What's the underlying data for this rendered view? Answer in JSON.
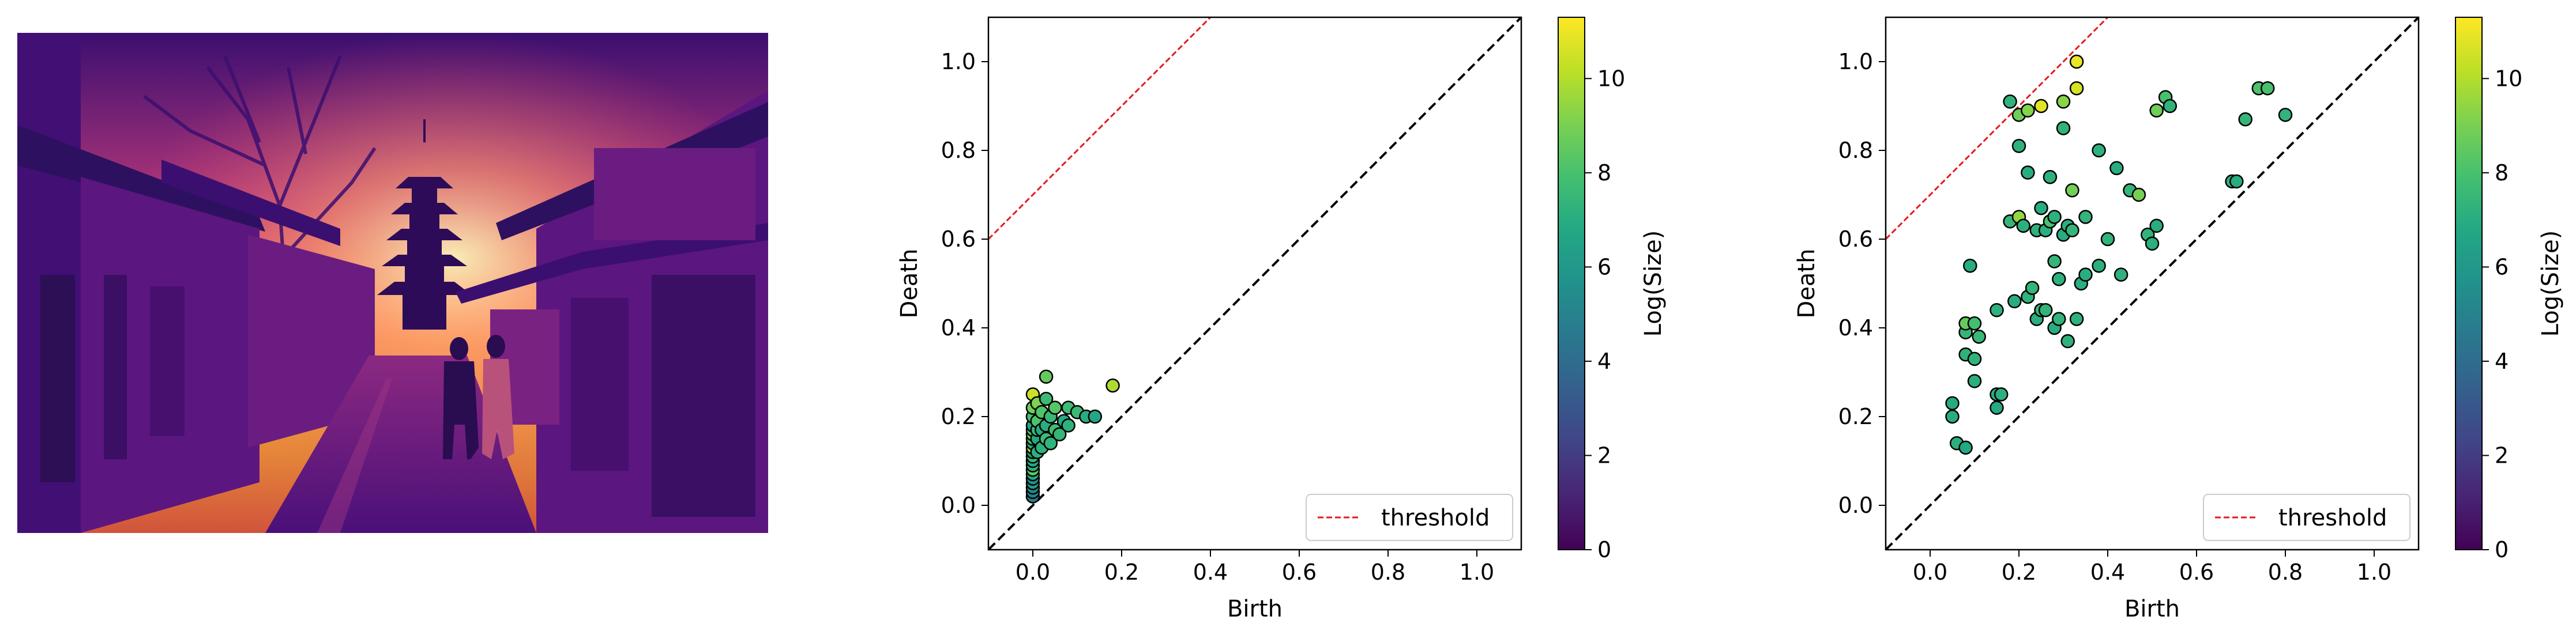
{
  "figure": {
    "panels": [
      {
        "kind": "image",
        "description_icon": "thermal-street-photo"
      },
      {
        "kind": "persistence-diagram"
      },
      {
        "kind": "persistence-diagram"
      }
    ]
  },
  "colormap": {
    "name": "viridis",
    "label": "Log(Size)",
    "range": [
      0,
      11.3
    ],
    "ticks": [
      "0",
      "2",
      "4",
      "6",
      "8",
      "10"
    ],
    "tick_values": [
      0,
      2,
      4,
      6,
      8,
      10
    ]
  },
  "colors": {
    "threshold": "#e41a1c",
    "diagonal": "#000000",
    "marker_edge": "#000000"
  },
  "chart_data": [
    {
      "type": "scatter",
      "xlabel": "Birth",
      "ylabel": "Death",
      "xlim": [
        -0.1,
        1.1
      ],
      "ylim": [
        -0.1,
        1.1
      ],
      "xticks": [
        "0.0",
        "0.2",
        "0.4",
        "0.6",
        "0.8",
        "1.0"
      ],
      "yticks": [
        "0.0",
        "0.2",
        "0.4",
        "0.6",
        "0.8",
        "1.0"
      ],
      "tick_values": [
        0,
        0.2,
        0.4,
        0.6,
        0.8,
        1.0
      ],
      "legend": {
        "label": "threshold",
        "placement": "lower-right"
      },
      "threshold_offset": 0.7,
      "diagonal": true,
      "points": [
        [
          0.0,
          0.02,
          4.8
        ],
        [
          0.0,
          0.03,
          5.0
        ],
        [
          0.0,
          0.04,
          5.2
        ],
        [
          0.0,
          0.05,
          6.2
        ],
        [
          0.0,
          0.06,
          5.6
        ],
        [
          0.0,
          0.07,
          6.8
        ],
        [
          0.0,
          0.08,
          8.5
        ],
        [
          0.0,
          0.09,
          7.2
        ],
        [
          0.0,
          0.1,
          6.9
        ],
        [
          0.0,
          0.11,
          7.5
        ],
        [
          0.0,
          0.12,
          6.5
        ],
        [
          0.0,
          0.13,
          9.8
        ],
        [
          0.0,
          0.14,
          7.0
        ],
        [
          0.0,
          0.15,
          8.0
        ],
        [
          0.0,
          0.16,
          9.5
        ],
        [
          0.0,
          0.17,
          7.8
        ],
        [
          0.0,
          0.18,
          6.6
        ],
        [
          0.0,
          0.2,
          7.9
        ],
        [
          0.0,
          0.22,
          8.8
        ],
        [
          0.0,
          0.25,
          10.4
        ],
        [
          0.01,
          0.12,
          7.1
        ],
        [
          0.01,
          0.15,
          6.8
        ],
        [
          0.01,
          0.17,
          7.4
        ],
        [
          0.01,
          0.19,
          8.1
        ],
        [
          0.01,
          0.23,
          9.1
        ],
        [
          0.02,
          0.13,
          7.2
        ],
        [
          0.02,
          0.17,
          6.9
        ],
        [
          0.02,
          0.21,
          8.2
        ],
        [
          0.03,
          0.15,
          7.7
        ],
        [
          0.03,
          0.18,
          7.0
        ],
        [
          0.03,
          0.24,
          7.6
        ],
        [
          0.03,
          0.29,
          8.6
        ],
        [
          0.04,
          0.14,
          7.3
        ],
        [
          0.04,
          0.2,
          7.5
        ],
        [
          0.05,
          0.17,
          7.8
        ],
        [
          0.05,
          0.22,
          8.3
        ],
        [
          0.06,
          0.16,
          7.4
        ],
        [
          0.07,
          0.19,
          6.9
        ],
        [
          0.08,
          0.22,
          7.7
        ],
        [
          0.08,
          0.18,
          7.2
        ],
        [
          0.1,
          0.21,
          7.6
        ],
        [
          0.12,
          0.2,
          7.0
        ],
        [
          0.14,
          0.2,
          6.7
        ],
        [
          0.18,
          0.27,
          9.9
        ]
      ]
    },
    {
      "type": "scatter",
      "xlabel": "Birth",
      "ylabel": "Death",
      "xlim": [
        -0.1,
        1.1
      ],
      "ylim": [
        -0.1,
        1.1
      ],
      "xticks": [
        "0.0",
        "0.2",
        "0.4",
        "0.6",
        "0.8",
        "1.0"
      ],
      "yticks": [
        "0.0",
        "0.2",
        "0.4",
        "0.6",
        "0.8",
        "1.0"
      ],
      "tick_values": [
        0,
        0.2,
        0.4,
        0.6,
        0.8,
        1.0
      ],
      "legend": {
        "label": "threshold",
        "placement": "lower-right"
      },
      "threshold_offset": 0.7,
      "diagonal": true,
      "points": [
        [
          0.05,
          0.2,
          7.0
        ],
        [
          0.05,
          0.23,
          6.9
        ],
        [
          0.06,
          0.14,
          7.1
        ],
        [
          0.08,
          0.13,
          6.8
        ],
        [
          0.08,
          0.34,
          7.2
        ],
        [
          0.08,
          0.39,
          7.4
        ],
        [
          0.08,
          0.41,
          8.6
        ],
        [
          0.09,
          0.54,
          7.0
        ],
        [
          0.1,
          0.28,
          7.1
        ],
        [
          0.1,
          0.33,
          7.3
        ],
        [
          0.1,
          0.41,
          7.9
        ],
        [
          0.11,
          0.38,
          7.5
        ],
        [
          0.15,
          0.44,
          7.2
        ],
        [
          0.15,
          0.25,
          7.0
        ],
        [
          0.15,
          0.22,
          6.9
        ],
        [
          0.16,
          0.25,
          7.1
        ],
        [
          0.18,
          0.91,
          7.3
        ],
        [
          0.18,
          0.64,
          7.4
        ],
        [
          0.19,
          0.46,
          7.0
        ],
        [
          0.2,
          0.81,
          7.2
        ],
        [
          0.2,
          0.88,
          8.8
        ],
        [
          0.2,
          0.65,
          9.5
        ],
        [
          0.21,
          0.63,
          7.1
        ],
        [
          0.22,
          0.47,
          7.3
        ],
        [
          0.22,
          0.75,
          7.0
        ],
        [
          0.22,
          0.89,
          9.2
        ],
        [
          0.23,
          0.49,
          7.4
        ],
        [
          0.24,
          0.42,
          7.1
        ],
        [
          0.24,
          0.62,
          7.2
        ],
        [
          0.25,
          0.44,
          7.5
        ],
        [
          0.25,
          0.9,
          10.8
        ],
        [
          0.25,
          0.67,
          7.0
        ],
        [
          0.26,
          0.44,
          7.3
        ],
        [
          0.26,
          0.62,
          7.1
        ],
        [
          0.27,
          0.74,
          7.2
        ],
        [
          0.27,
          0.64,
          8.0
        ],
        [
          0.28,
          0.4,
          7.0
        ],
        [
          0.28,
          0.65,
          7.2
        ],
        [
          0.28,
          0.55,
          7.4
        ],
        [
          0.29,
          0.42,
          7.3
        ],
        [
          0.29,
          0.51,
          7.2
        ],
        [
          0.3,
          0.61,
          7.0
        ],
        [
          0.3,
          0.85,
          7.3
        ],
        [
          0.3,
          0.91,
          9.3
        ],
        [
          0.31,
          0.37,
          7.2
        ],
        [
          0.31,
          0.63,
          7.1
        ],
        [
          0.32,
          0.71,
          8.9
        ],
        [
          0.32,
          0.62,
          7.4
        ],
        [
          0.33,
          0.94,
          10.6
        ],
        [
          0.33,
          1.0,
          11.0
        ],
        [
          0.33,
          0.42,
          7.2
        ],
        [
          0.34,
          0.5,
          7.1
        ],
        [
          0.35,
          0.65,
          7.3
        ],
        [
          0.35,
          0.52,
          7.0
        ],
        [
          0.38,
          0.8,
          7.2
        ],
        [
          0.38,
          0.54,
          7.1
        ],
        [
          0.4,
          0.6,
          7.3
        ],
        [
          0.42,
          0.76,
          7.0
        ],
        [
          0.43,
          0.52,
          7.2
        ],
        [
          0.45,
          0.71,
          7.4
        ],
        [
          0.47,
          0.7,
          9.0
        ],
        [
          0.49,
          0.61,
          7.3
        ],
        [
          0.5,
          0.59,
          7.1
        ],
        [
          0.51,
          0.89,
          8.8
        ],
        [
          0.51,
          0.63,
          7.0
        ],
        [
          0.53,
          0.92,
          8.0
        ],
        [
          0.54,
          0.9,
          7.3
        ],
        [
          0.68,
          0.73,
          7.2
        ],
        [
          0.69,
          0.73,
          7.0
        ],
        [
          0.71,
          0.87,
          7.4
        ],
        [
          0.74,
          0.94,
          8.1
        ],
        [
          0.76,
          0.94,
          8.0
        ],
        [
          0.8,
          0.88,
          7.3
        ]
      ]
    }
  ]
}
